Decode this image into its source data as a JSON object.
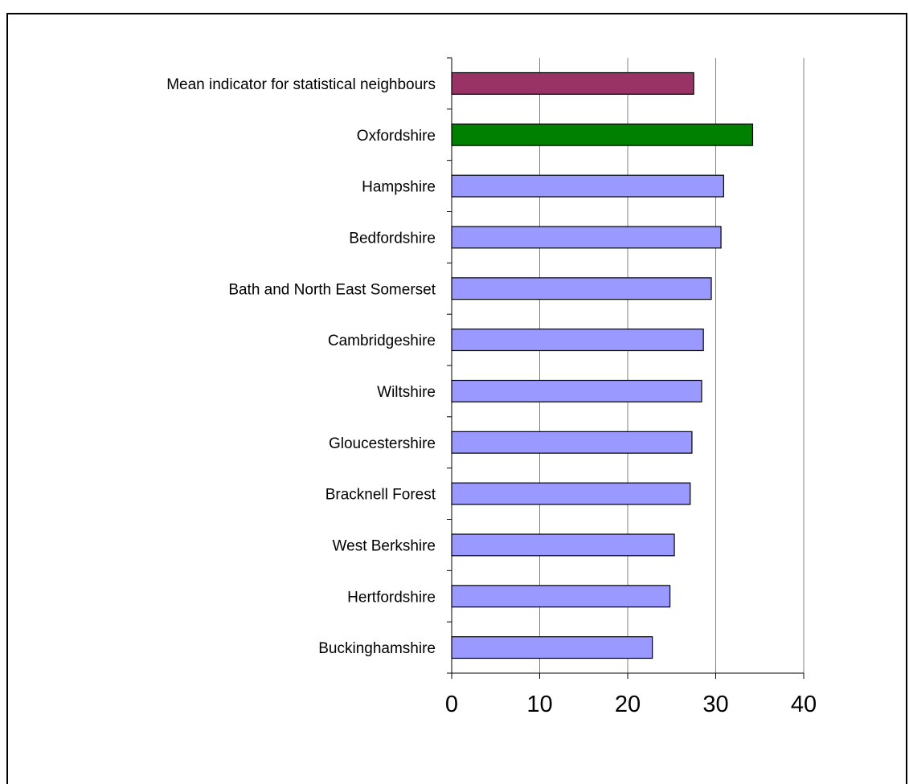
{
  "chart_data": {
    "type": "bar",
    "orientation": "horizontal",
    "title": "",
    "xlabel": "",
    "ylabel": "",
    "xlim": [
      0,
      40
    ],
    "x_ticks": [
      "0",
      "10",
      "20",
      "30",
      "40"
    ],
    "grid": "vertical",
    "legend": "none",
    "categories": [
      "Mean indicator for statistical neighbours",
      "Oxfordshire",
      "Hampshire",
      "Bedfordshire",
      "Bath and North East Somerset",
      "Cambridgeshire",
      "Wiltshire",
      "Gloucestershire",
      "Bracknell Forest",
      "West Berkshire",
      "Hertfordshire",
      "Buckinghamshire"
    ],
    "values": [
      27.5,
      34.2,
      30.9,
      30.6,
      29.5,
      28.6,
      28.4,
      27.3,
      27.1,
      25.3,
      24.8,
      22.8
    ],
    "bar_colors": [
      "#993366",
      "#008000",
      "#9999ff",
      "#9999ff",
      "#9999ff",
      "#9999ff",
      "#9999ff",
      "#9999ff",
      "#9999ff",
      "#9999ff",
      "#9999ff",
      "#9999ff"
    ],
    "gridline_color": "#808080",
    "axis_color": "#000000",
    "bar_edge_color": "#000000"
  }
}
